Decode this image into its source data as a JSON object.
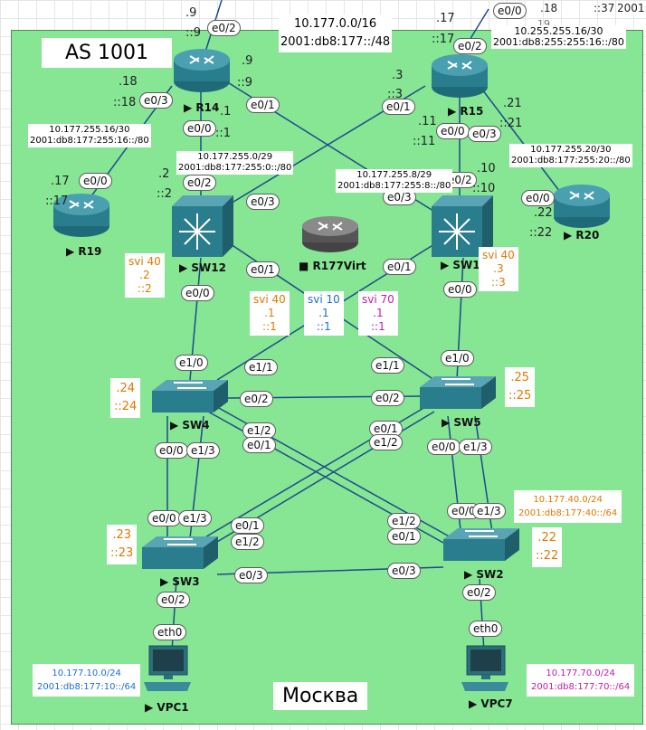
{
  "as_title": "AS 1001",
  "location": "Москва",
  "colors": {
    "area": "#86e694",
    "svi_orange": "#e07800",
    "vlan10_blue": "#1a6fd6",
    "vlan70_magenta": "#c41aa8",
    "router": "#2a7d8c"
  },
  "top_net": {
    "v4": "10.177.0.0/16",
    "v6": "2001:db8:177::/48"
  },
  "nets": {
    "r14_r19": {
      "v4": "10.177.255.16/30",
      "v6": "2001:db8:177:255:16::/80"
    },
    "r14_sw12": {
      "v4": "10.177.255.0/29",
      "v6": "2001:db8:177:255:0::/80"
    },
    "r15_sw13": {
      "v4": "10.177.255.8/29",
      "v6": "2001:db8:177:255:8::/80"
    },
    "r15_top": {
      "v4": "10.255.255.16/30",
      "v6": "2001:db8:255:255:16::/80"
    },
    "r15_r20": {
      "v4": "10.177.255.20/30",
      "v6": "2001:db8:177:255:20::/80"
    },
    "vlan40": {
      "v4": "10.177.40.0/24",
      "v6": "2001:db8:177:40::/64"
    },
    "vlan10": {
      "v4": "10.177.10.0/24",
      "v6": "2001:db8:177:10::/64"
    },
    "vlan70": {
      "v4": "10.177.70.0/24",
      "v6": "2001:db8:177:70::/64"
    }
  },
  "top_edge": {
    "a": ".18",
    "b": "::37",
    "c": "2001:",
    "d": "19"
  },
  "devices": {
    "r14": "R14",
    "r15": "R15",
    "r19": "R19",
    "r20": "R20",
    "sw12": "SW12",
    "sw13": "SW1",
    "sw4": "SW4",
    "sw5": "SW5",
    "sw3": "SW3",
    "sw2": "SW2",
    "vpc1": "VPC1",
    "vpc7": "VPC7",
    "virt": "R177Virt"
  },
  "svi": {
    "sw12": {
      "name": "svi 40",
      "v4": ".2",
      "v6": "::2"
    },
    "sw13": {
      "name": "svi 40",
      "v4": ".3",
      "v6": "::3"
    },
    "vip40": {
      "name": "svi 40",
      "v4": ".1",
      "v6": "::1"
    },
    "vip10": {
      "name": "svi 10",
      "v4": ".1",
      "v6": "::1"
    },
    "vip70": {
      "name": "svi 70",
      "v4": ".1",
      "v6": "::1"
    }
  },
  "addr": {
    "r14_top": {
      "v4": ".9",
      "v6": "::9"
    },
    "r14_right": {
      "v4": ".9",
      "v6": "::9"
    },
    "r14_left": {
      "v4": ".18",
      "v6": "::18"
    },
    "r14_down": {
      "v4": ".1",
      "v6": "::1"
    },
    "r19": {
      "v4": ".17",
      "v6": "::17"
    },
    "sw12": {
      "v4": ".2",
      "v6": "::2"
    },
    "r15_top": {
      "v4": ".17",
      "v6": "::17"
    },
    "r15_left": {
      "v4": ".3",
      "v6": "::3"
    },
    "r15_down": {
      "v4": ".11",
      "v6": "::11"
    },
    "r15_right": {
      "v4": ".21",
      "v6": "::21"
    },
    "sw13": {
      "v4": ".10",
      "v6": "::10"
    },
    "r20": {
      "v4": ".22",
      "v6": "::22"
    },
    "sw4": {
      "v4": ".24",
      "v6": "::24"
    },
    "sw5": {
      "v4": ".25",
      "v6": "::25"
    },
    "sw3": {
      "v4": ".23",
      "v6": "::23"
    },
    "sw2": {
      "v4": ".22",
      "v6": "::22"
    }
  },
  "ifaces": {
    "r14_e02": "e0/2",
    "r14_e03": "e0/3",
    "r14_e01": "e0/1",
    "r14_e00": "e0/0",
    "r19_e00": "e0/0",
    "sw12_e02": "e0/2",
    "sw12_e03": "e0/3",
    "sw12_e01": "e0/1",
    "sw12_e00": "e0/0",
    "r15_e00top": "e0/0",
    "r15_e02": "e0/2",
    "r15_e01": "e0/1",
    "r15_e00": "e0/0",
    "r15_e03": "e0/3",
    "sw13_e02": "e0/2",
    "sw13_e03": "e0/3",
    "sw13_e01": "e0/1",
    "sw13_e00": "e0/0",
    "r20_e00": "e0/0",
    "sw4_e10": "e1/0",
    "sw4_e11": "e1/1",
    "sw4_e02": "e0/2",
    "sw4_e12": "e1/2",
    "sw4_e01": "e0/1",
    "sw4_e00": "e0/0",
    "sw4_e13": "e1/3",
    "sw5_e10": "e1/0",
    "sw5_e11": "e1/1",
    "sw5_e02": "e0/2",
    "sw5_e01": "e0/1",
    "sw5_e12": "e1/2",
    "sw5_e00": "e0/0",
    "sw5_e13": "e1/3",
    "sw3_e00": "e0/0",
    "sw3_e13": "e1/3",
    "sw3_e01": "e0/1",
    "sw3_e12": "e1/2",
    "sw3_e03": "e0/3",
    "sw3_e02": "e0/2",
    "sw2_e00": "e0/0",
    "sw2_e13": "e1/3",
    "sw2_e12": "e1/2",
    "sw2_e01": "e0/1",
    "sw2_e03": "e0/3",
    "sw2_e02": "e0/2",
    "vpc1_eth0": "eth0",
    "vpc7_eth0": "eth0"
  }
}
